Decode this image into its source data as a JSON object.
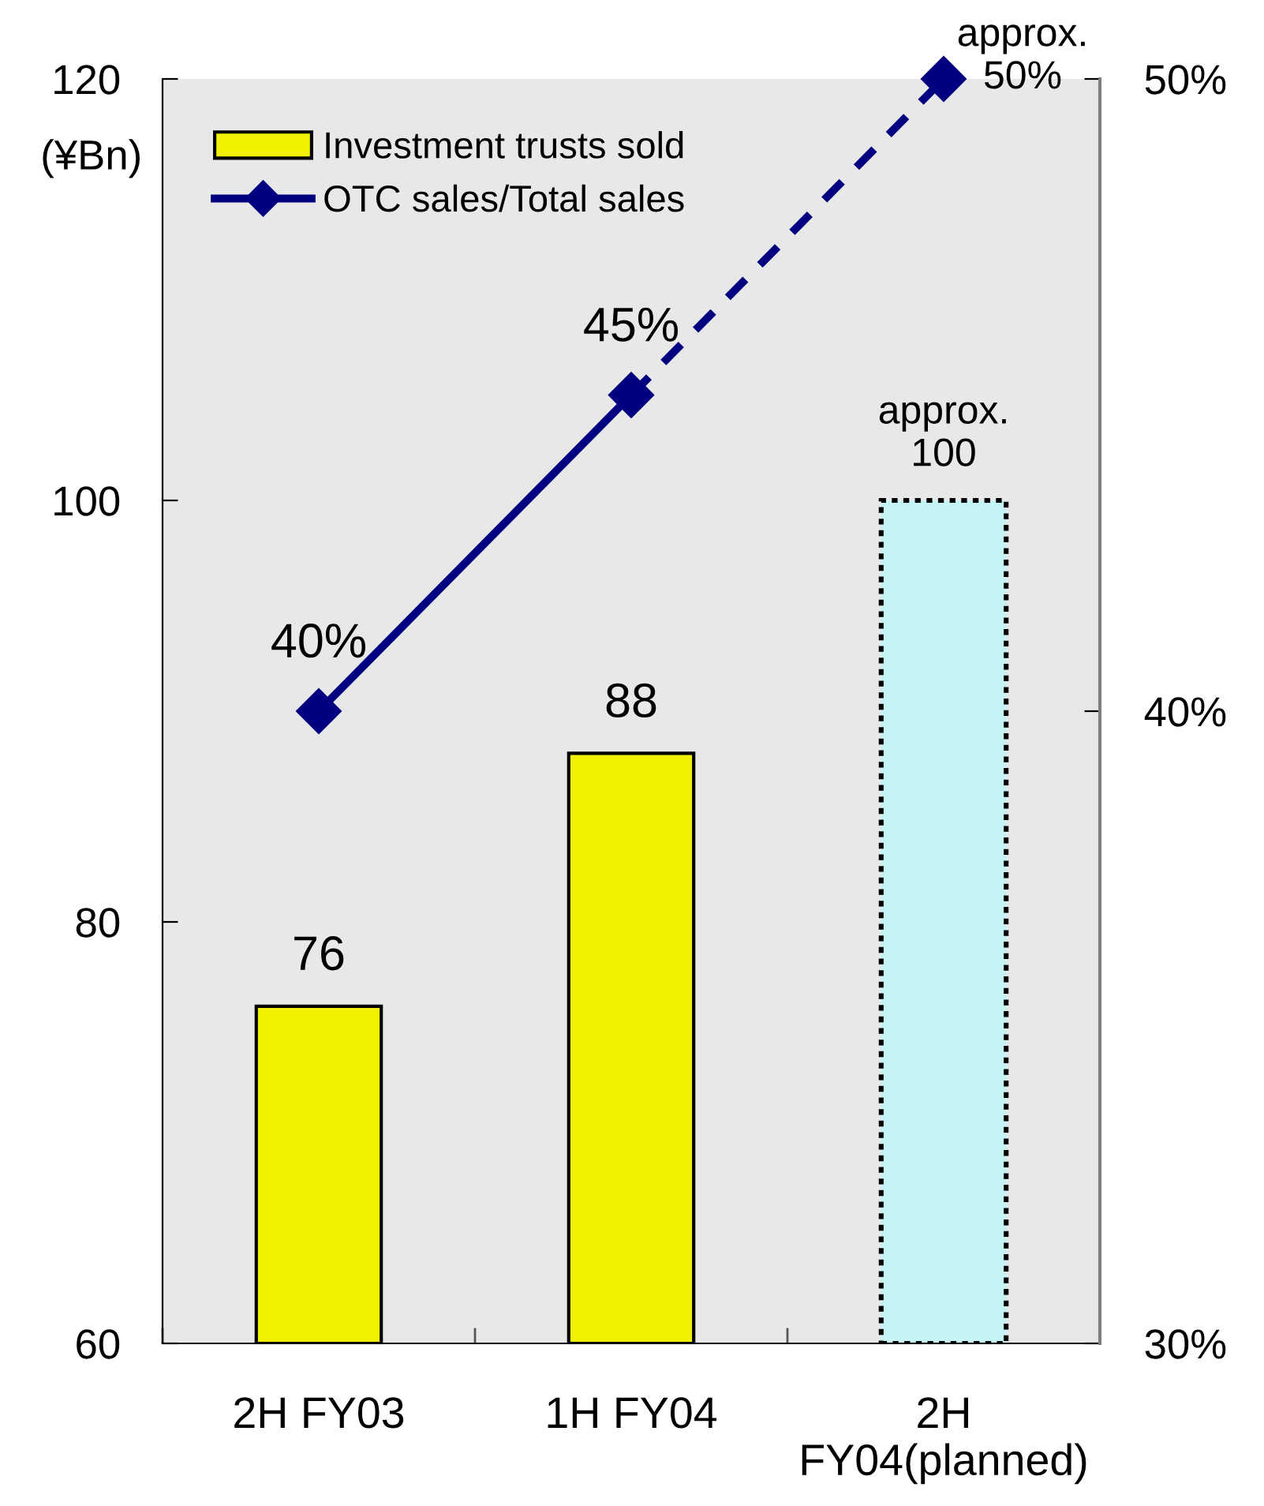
{
  "chart_data": {
    "type": "bar",
    "categories": [
      "2H FY03",
      "1H FY04",
      "2H\nFY04(planned)"
    ],
    "ylabel": "(¥Bn)",
    "ylim": [
      60,
      120
    ],
    "yticks": [
      60,
      80,
      100,
      120
    ],
    "y2lim": [
      30,
      50
    ],
    "y2ticks": [
      {
        "value": 30,
        "label": "30%"
      },
      {
        "value": 40,
        "label": "40%"
      },
      {
        "value": 50,
        "label": "50%"
      }
    ],
    "legend": "top left",
    "series": [
      {
        "name": "Investment trusts sold",
        "color": "#f2f200",
        "values": [
          76,
          88,
          null
        ],
        "value_labels": [
          "76",
          "88",
          null
        ]
      },
      {
        "color": "#c4f4f4",
        "line_style": "dotted",
        "values": [
          null,
          null,
          100
        ],
        "value_labels": [
          null,
          null,
          "approx.\n100"
        ]
      },
      {
        "name": "OTC sales/Total sales",
        "type": "line",
        "axis": "y2",
        "color": "#000080",
        "marker": "diamond",
        "line_style": "solid",
        "values": [
          40,
          45,
          null
        ],
        "value_labels": [
          "40%",
          "45%",
          null
        ]
      },
      {
        "type": "line",
        "axis": "y2",
        "color": "#000080",
        "marker": "diamond",
        "line_style": "dashed",
        "values": [
          null,
          45,
          50
        ],
        "value_labels": [
          null,
          null,
          "approx.\n50%"
        ]
      }
    ]
  }
}
